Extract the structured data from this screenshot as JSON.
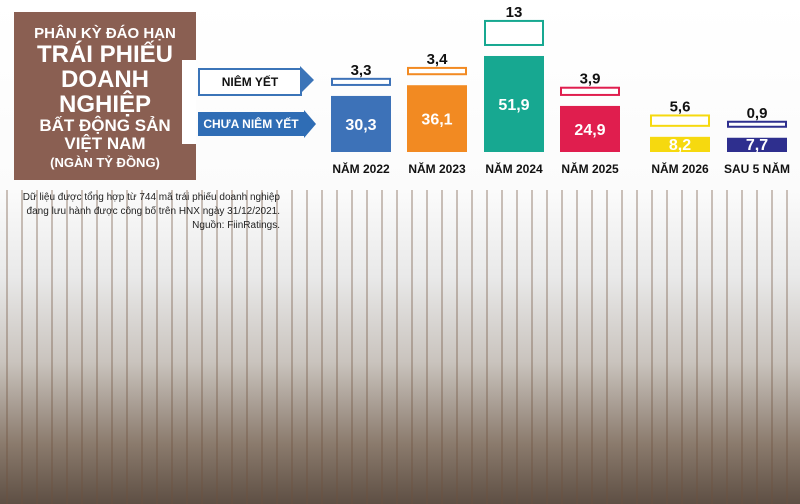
{
  "title": {
    "line1": "PHÂN KỲ ĐÁO HẠN",
    "line2": "TRÁI PHIẾU",
    "line3": "DOANH NGHIỆP",
    "line4": "BẤT ĐỘNG SẢN",
    "line5": "VIỆT NAM",
    "unit": "(NGÀN TỶ ĐỒNG)"
  },
  "legend": {
    "listed": "NIÊM YẾT",
    "unlisted": "CHƯA NIÊM YẾT"
  },
  "note": {
    "line1": "Dữ liệu được tổng hợp từ 744 mã trái phiếu doanh nghiệp",
    "line2": "đang lưu hành được công bố trên HNX ngày 31/12/2021.",
    "source": "Nguồn: FiinRatings."
  },
  "chart_data": {
    "type": "bar",
    "categories": [
      "NĂM 2022",
      "NĂM 2023",
      "NĂM 2024",
      "NĂM 2025",
      "NĂM 2026",
      "SAU 5 NĂM"
    ],
    "series": [
      {
        "name": "CHƯA NIÊM YẾT",
        "values": [
          30.3,
          36.1,
          51.9,
          24.9,
          8.2,
          7.7
        ],
        "labels": [
          "30,3",
          "36,1",
          "51,9",
          "24,9",
          "8,2",
          "7,7"
        ],
        "style": "filled"
      },
      {
        "name": "NIÊM YẾT",
        "values": [
          3.3,
          3.4,
          13,
          3.9,
          5.6,
          0.9
        ],
        "labels": [
          "3,3",
          "3,4",
          "13",
          "3,9",
          "5,6",
          "0,9"
        ],
        "style": "outline"
      }
    ],
    "colors": [
      "#3d72b8",
      "#f28a22",
      "#17a891",
      "#e01e4e",
      "#f6d90f",
      "#2e2f8e"
    ],
    "unit": "ngàn tỷ đồng",
    "grid": false
  }
}
